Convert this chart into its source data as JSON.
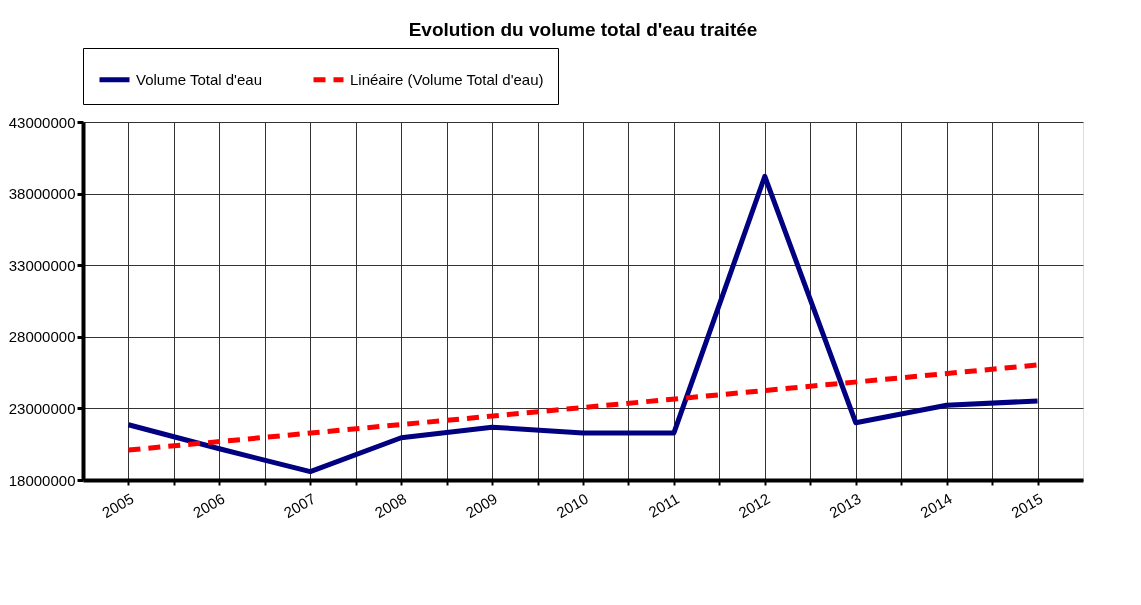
{
  "chart_data": {
    "type": "line",
    "title": "Evolution du volume total d'eau traitée",
    "x": [
      2005,
      2006,
      2007,
      2008,
      2009,
      2010,
      2011,
      2012,
      2013,
      2014,
      2015
    ],
    "xlim": [
      2004.5,
      2015.5
    ],
    "xticks": [
      2005,
      {
        "value": 2005.5,
        "label": null
      },
      2006,
      {
        "value": 2006.5,
        "label": null
      },
      2007,
      {
        "value": 2007.5,
        "label": null
      },
      2008,
      {
        "value": 2008.5,
        "label": null
      },
      2009,
      {
        "value": 2009.5,
        "label": null
      },
      2010,
      {
        "value": 2010.5,
        "label": null
      },
      2011,
      {
        "value": 2011.5,
        "label": null
      },
      2012,
      {
        "value": 2012.5,
        "label": null
      },
      2013,
      {
        "value": 2013.5,
        "label": null
      },
      2014,
      {
        "value": 2014.5,
        "label": null
      },
      2015
    ],
    "ylim": [
      18000000,
      43000000
    ],
    "yticks": [
      18000000,
      23000000,
      28000000,
      33000000,
      38000000,
      43000000
    ],
    "grid": true,
    "legend": "top",
    "series": [
      {
        "name": "Volume Total d'eau",
        "color": "#000080",
        "line_style": "solid",
        "values": [
          21860000,
          20180000,
          18590000,
          20950000,
          21690000,
          21290000,
          21290000,
          39210000,
          22000000,
          23220000,
          23520000
        ]
      },
      {
        "name": "Linéaire (Volume Total d'eau)",
        "color": "#ff0000",
        "type": "line",
        "line_style": "dashed",
        "x": [
          2005,
          2015
        ],
        "values": [
          20090000,
          26030000
        ]
      }
    ]
  }
}
